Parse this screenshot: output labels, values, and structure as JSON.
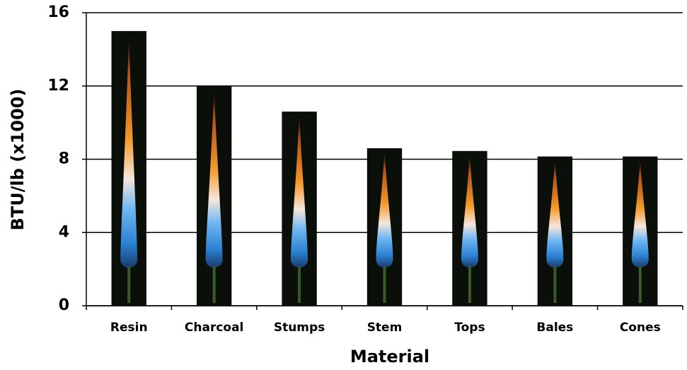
{
  "chart_data": {
    "type": "bar",
    "x_label": "Material",
    "y_label": "BTU/lb (x1000)",
    "categories": [
      "Resin",
      "Charcoal",
      "Stumps",
      "Stem",
      "Tops",
      "Bales",
      "Cones"
    ],
    "values": [
      15,
      12,
      10.6,
      8.6,
      8.45,
      8.15,
      8.15
    ],
    "color": "#0a0f0a",
    "ylim": [
      0,
      16
    ],
    "yticks": [
      0,
      4,
      8,
      12,
      16
    ],
    "grid": true
  }
}
